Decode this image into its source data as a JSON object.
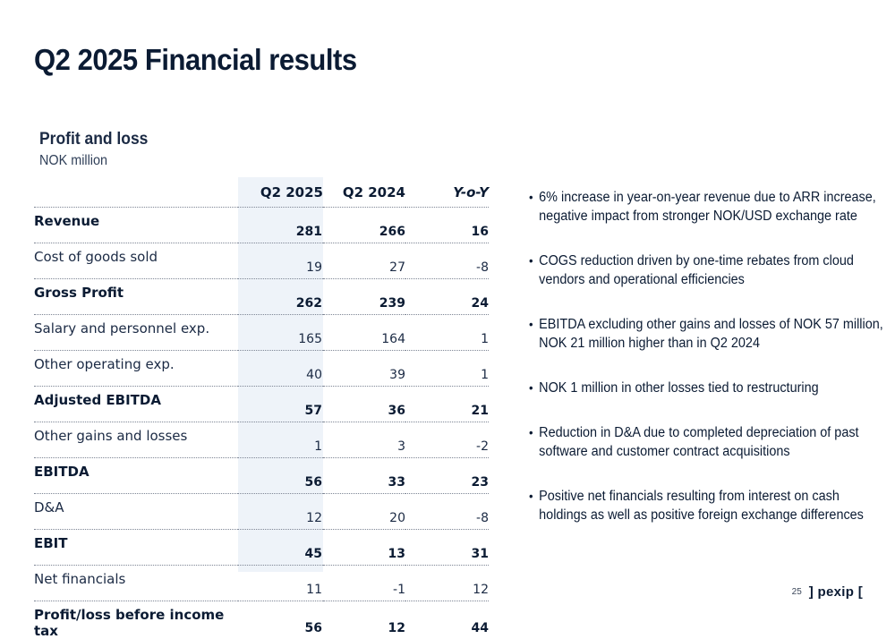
{
  "slide": {
    "title": "Q2 2025 Financial results",
    "section_title": "Profit and loss",
    "section_subtitle": "NOK million",
    "page_number": "25",
    "logo_text": "] pexip ["
  },
  "table": {
    "columns": [
      "Q2 2025",
      "Q2 2024",
      "Y-o-Y"
    ],
    "rows": [
      {
        "label": "Revenue",
        "values": [
          "281",
          "266",
          "16"
        ],
        "bold": true
      },
      {
        "label": "Cost of goods sold",
        "values": [
          "19",
          "27",
          "-8"
        ],
        "bold": false
      },
      {
        "label": "Gross Profit",
        "values": [
          "262",
          "239",
          "24"
        ],
        "bold": true
      },
      {
        "label": "Salary and personnel exp.",
        "values": [
          "165",
          "164",
          "1"
        ],
        "bold": false
      },
      {
        "label": "Other operating exp.",
        "values": [
          "40",
          "39",
          "1"
        ],
        "bold": false
      },
      {
        "label": "Adjusted EBITDA",
        "values": [
          "57",
          "36",
          "21"
        ],
        "bold": true
      },
      {
        "label": "Other gains and losses",
        "values": [
          "1",
          "3",
          "-2"
        ],
        "bold": false
      },
      {
        "label": "EBITDA",
        "values": [
          "56",
          "33",
          "23"
        ],
        "bold": true
      },
      {
        "label": "D&A",
        "values": [
          "12",
          "20",
          "-8"
        ],
        "bold": false
      },
      {
        "label": "EBIT",
        "values": [
          "45",
          "13",
          "31"
        ],
        "bold": true
      },
      {
        "label": "Net financials",
        "values": [
          "11",
          "-1",
          "12"
        ],
        "bold": false
      },
      {
        "label": "Profit/loss before income tax",
        "values": [
          "56",
          "12",
          "44"
        ],
        "bold": true
      }
    ]
  },
  "bullets": [
    "6% increase in year-on-year revenue due to ARR increase, negative impact from stronger NOK/USD exchange rate",
    "COGS reduction driven by one-time rebates from cloud vendors and operational efficiencies",
    "EBITDA excluding other gains and losses of NOK 57 million, NOK 21 million higher than in Q2 2024",
    "NOK 1 million in other losses tied to restructuring",
    "Reduction in D&A due to completed depreciation of past software and customer contract acquisitions",
    "Positive net financials resulting from interest on cash holdings as well as positive foreign exchange differences"
  ]
}
